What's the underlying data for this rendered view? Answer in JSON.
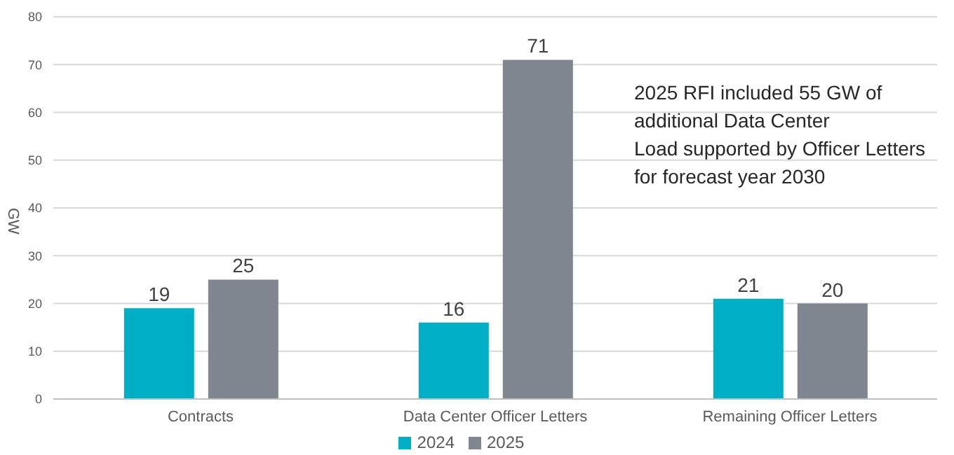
{
  "chart_data": {
    "type": "bar",
    "ylabel": "GW",
    "categories": [
      "Contracts",
      "Data Center Officer Letters",
      "Remaining Officer Letters"
    ],
    "series": [
      {
        "name": "2024",
        "color": "#00afc6",
        "values": [
          19,
          16,
          21
        ]
      },
      {
        "name": "2025",
        "color": "#7f868f",
        "values": [
          25,
          71,
          20
        ]
      }
    ],
    "ylim": [
      0,
      80
    ],
    "yticks": [
      0,
      10,
      20,
      30,
      40,
      50,
      60,
      70,
      80
    ],
    "grid": "y",
    "legend": "bottom",
    "data_labels": true,
    "annotations": [
      "2025 RFI included 55 GW of\nadditional Data Center\nLoad supported by Officer Letters\nfor forecast year 2030"
    ]
  }
}
